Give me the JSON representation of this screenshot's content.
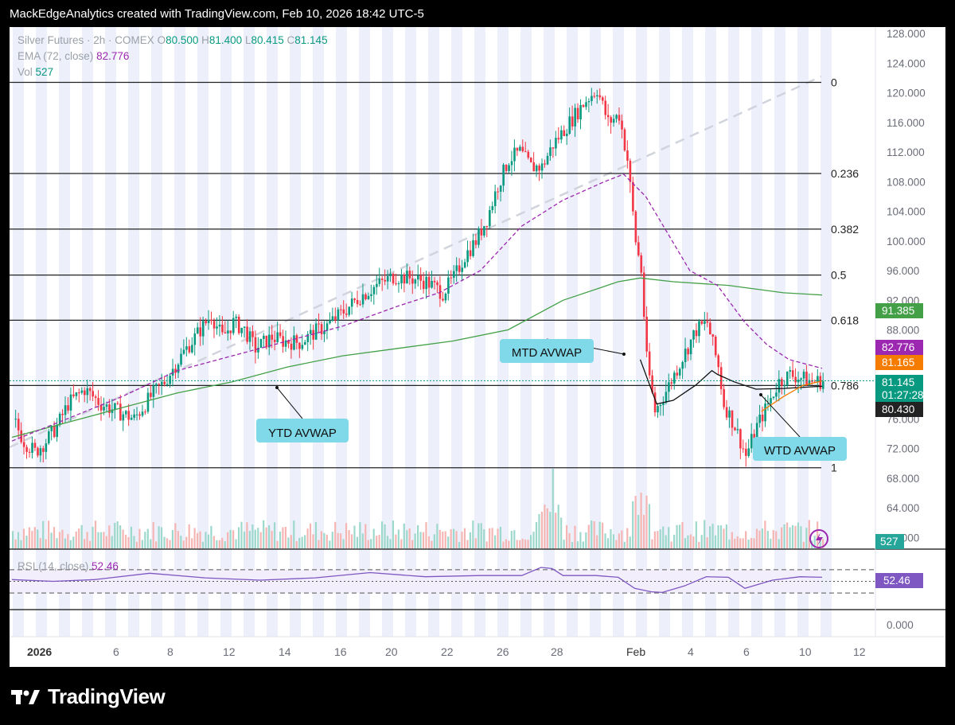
{
  "header": {
    "credit": "MackEdgeAnalytics created with TradingView.com, Feb 10, 2026 18:42 UTC-5"
  },
  "footer": {
    "brand": "TradingView"
  },
  "legend": {
    "symbol": "Silver Futures · 2h · COMEX",
    "o_label": "O",
    "o_value": "80.500",
    "h_label": "H",
    "h_value": "81.400",
    "l_label": "L",
    "l_value": "80.415",
    "c_label": "C",
    "c_value": "81.145",
    "ema_label": "EMA (72, close)",
    "ema_value": "82.776",
    "vol_label": "Vol",
    "vol_value": "527",
    "rsi_label": "RSI (14, close)",
    "rsi_value": "52.46"
  },
  "chart_data": {
    "type": "line",
    "description_type": "candlestick",
    "price_axis": {
      "ticks": [
        "128.000",
        "124.000",
        "120.000",
        "116.000",
        "112.000",
        "108.000",
        "104.000",
        "100.000",
        "96.000",
        "92.000",
        "88.000",
        "84.000",
        "80.000",
        "76.000",
        "72.000",
        "68.000",
        "64.000",
        "60.000"
      ],
      "ylim": [
        60,
        128
      ]
    },
    "rsi_axis": {
      "ticks": [
        "0.000"
      ]
    },
    "time_axis": [
      "2026",
      "6",
      "8",
      "12",
      "14",
      "16",
      "20",
      "22",
      "26",
      "28",
      "Feb",
      "4",
      "6",
      "10",
      "12"
    ],
    "fib_levels": [
      {
        "label": "0",
        "price": 121.4
      },
      {
        "label": "0.236",
        "price": 109.1
      },
      {
        "label": "0.382",
        "price": 101.6
      },
      {
        "label": "0.5",
        "price": 95.4
      },
      {
        "label": "0.618",
        "price": 89.3
      },
      {
        "label": "0.786",
        "price": 80.5
      },
      {
        "label": "1",
        "price": 69.4
      }
    ],
    "annotations": [
      "YTD AVWAP",
      "MTD AVWAP",
      "WTD AVWAP"
    ],
    "price_tags": [
      {
        "value": "91.385",
        "color": "#43a047"
      },
      {
        "value": "82.776",
        "color": "#9c27b0"
      },
      {
        "value": "81.165",
        "color": "#f57c00"
      },
      {
        "value": "81.145",
        "sub": "01:27:28",
        "color": "#089981"
      },
      {
        "value": "80.430",
        "color": "#222222"
      }
    ],
    "volume_tag": "527",
    "rsi_tag": "52.46",
    "price_path": [
      [
        0,
        76
      ],
      [
        4,
        73
      ],
      [
        8,
        71.5
      ],
      [
        12,
        73
      ],
      [
        16,
        75
      ],
      [
        20,
        78
      ],
      [
        26,
        80
      ],
      [
        32,
        78
      ],
      [
        38,
        77
      ],
      [
        44,
        76
      ],
      [
        50,
        79
      ],
      [
        55,
        81
      ],
      [
        62,
        85
      ],
      [
        68,
        88
      ],
      [
        72,
        90
      ],
      [
        76,
        87
      ],
      [
        80,
        89
      ],
      [
        84,
        88
      ],
      [
        88,
        85.5
      ],
      [
        94,
        87
      ],
      [
        98,
        86.5
      ],
      [
        104,
        86.3
      ],
      [
        110,
        87.8
      ],
      [
        114,
        88.6
      ],
      [
        120,
        90.5
      ],
      [
        126,
        92.5
      ],
      [
        132,
        94
      ],
      [
        138,
        95.2
      ],
      [
        144,
        95
      ],
      [
        150,
        94.5
      ],
      [
        156,
        93
      ],
      [
        160,
        95
      ],
      [
        164,
        98
      ],
      [
        168,
        100
      ],
      [
        172,
        103
      ],
      [
        176,
        107.5
      ],
      [
        180,
        111
      ],
      [
        184,
        112
      ],
      [
        188,
        110
      ],
      [
        192,
        110
      ],
      [
        196,
        113
      ],
      [
        200,
        115
      ],
      [
        204,
        117
      ],
      [
        208,
        119
      ],
      [
        212,
        120.5
      ],
      [
        216,
        116
      ],
      [
        220,
        117
      ],
      [
        223,
        111
      ],
      [
        226,
        100
      ],
      [
        228,
        96
      ],
      [
        230,
        84
      ],
      [
        233,
        77
      ],
      [
        236,
        79
      ],
      [
        240,
        82
      ],
      [
        244,
        85
      ],
      [
        248,
        88
      ],
      [
        252,
        89
      ],
      [
        254,
        86
      ],
      [
        256,
        83
      ],
      [
        258,
        78
      ],
      [
        262,
        75
      ],
      [
        266,
        71
      ],
      [
        270,
        75
      ],
      [
        274,
        78
      ],
      [
        278,
        81
      ],
      [
        282,
        82
      ],
      [
        286,
        81.5
      ],
      [
        290,
        81
      ],
      [
        294,
        81.1
      ]
    ],
    "ema72": [
      [
        0,
        73
      ],
      [
        20,
        76
      ],
      [
        40,
        79
      ],
      [
        60,
        82.5
      ],
      [
        80,
        84.5
      ],
      [
        100,
        86.5
      ],
      [
        120,
        88.5
      ],
      [
        140,
        91.2
      ],
      [
        155,
        93
      ],
      [
        170,
        96
      ],
      [
        185,
        102
      ],
      [
        200,
        105.5
      ],
      [
        215,
        108
      ],
      [
        222,
        109
      ],
      [
        230,
        106
      ],
      [
        238,
        101
      ],
      [
        246,
        96
      ],
      [
        256,
        94
      ],
      [
        266,
        89
      ],
      [
        274,
        86
      ],
      [
        282,
        84
      ],
      [
        294,
        82.8
      ]
    ],
    "avwap_ytd": [
      [
        0,
        73.5
      ],
      [
        20,
        75.5
      ],
      [
        40,
        77.5
      ],
      [
        60,
        79.5
      ],
      [
        80,
        81
      ],
      [
        100,
        83
      ],
      [
        120,
        84.5
      ],
      [
        140,
        85.5
      ],
      [
        160,
        86.5
      ],
      [
        180,
        88
      ],
      [
        200,
        92
      ],
      [
        220,
        94.5
      ],
      [
        228,
        95
      ],
      [
        240,
        94.5
      ],
      [
        260,
        94
      ],
      [
        280,
        93
      ],
      [
        294,
        92.7
      ]
    ],
    "avwap_mtd": [
      [
        228,
        84
      ],
      [
        234,
        78
      ],
      [
        240,
        78.5
      ],
      [
        248,
        80.5
      ],
      [
        254,
        82.5
      ],
      [
        256,
        82
      ],
      [
        262,
        81
      ],
      [
        270,
        80
      ],
      [
        280,
        80.1
      ],
      [
        294,
        80.4
      ]
    ],
    "avwap_wtd": [
      [
        272,
        77
      ],
      [
        280,
        79
      ],
      [
        287,
        80.5
      ],
      [
        294,
        81.1
      ]
    ],
    "rsi_path": [
      [
        0,
        55
      ],
      [
        15,
        48
      ],
      [
        30,
        55
      ],
      [
        50,
        62
      ],
      [
        70,
        58
      ],
      [
        90,
        50
      ],
      [
        110,
        58
      ],
      [
        130,
        63
      ],
      [
        150,
        60
      ],
      [
        170,
        58
      ],
      [
        185,
        62
      ],
      [
        192,
        72
      ],
      [
        196,
        74
      ],
      [
        200,
        58
      ],
      [
        212,
        62
      ],
      [
        220,
        55
      ],
      [
        226,
        40
      ],
      [
        232,
        30
      ],
      [
        236,
        33
      ],
      [
        244,
        40
      ],
      [
        252,
        60
      ],
      [
        260,
        55
      ],
      [
        266,
        40
      ],
      [
        276,
        50
      ],
      [
        286,
        60
      ],
      [
        294,
        55
      ]
    ],
    "rsi_levels": [
      70,
      50,
      30
    ]
  }
}
